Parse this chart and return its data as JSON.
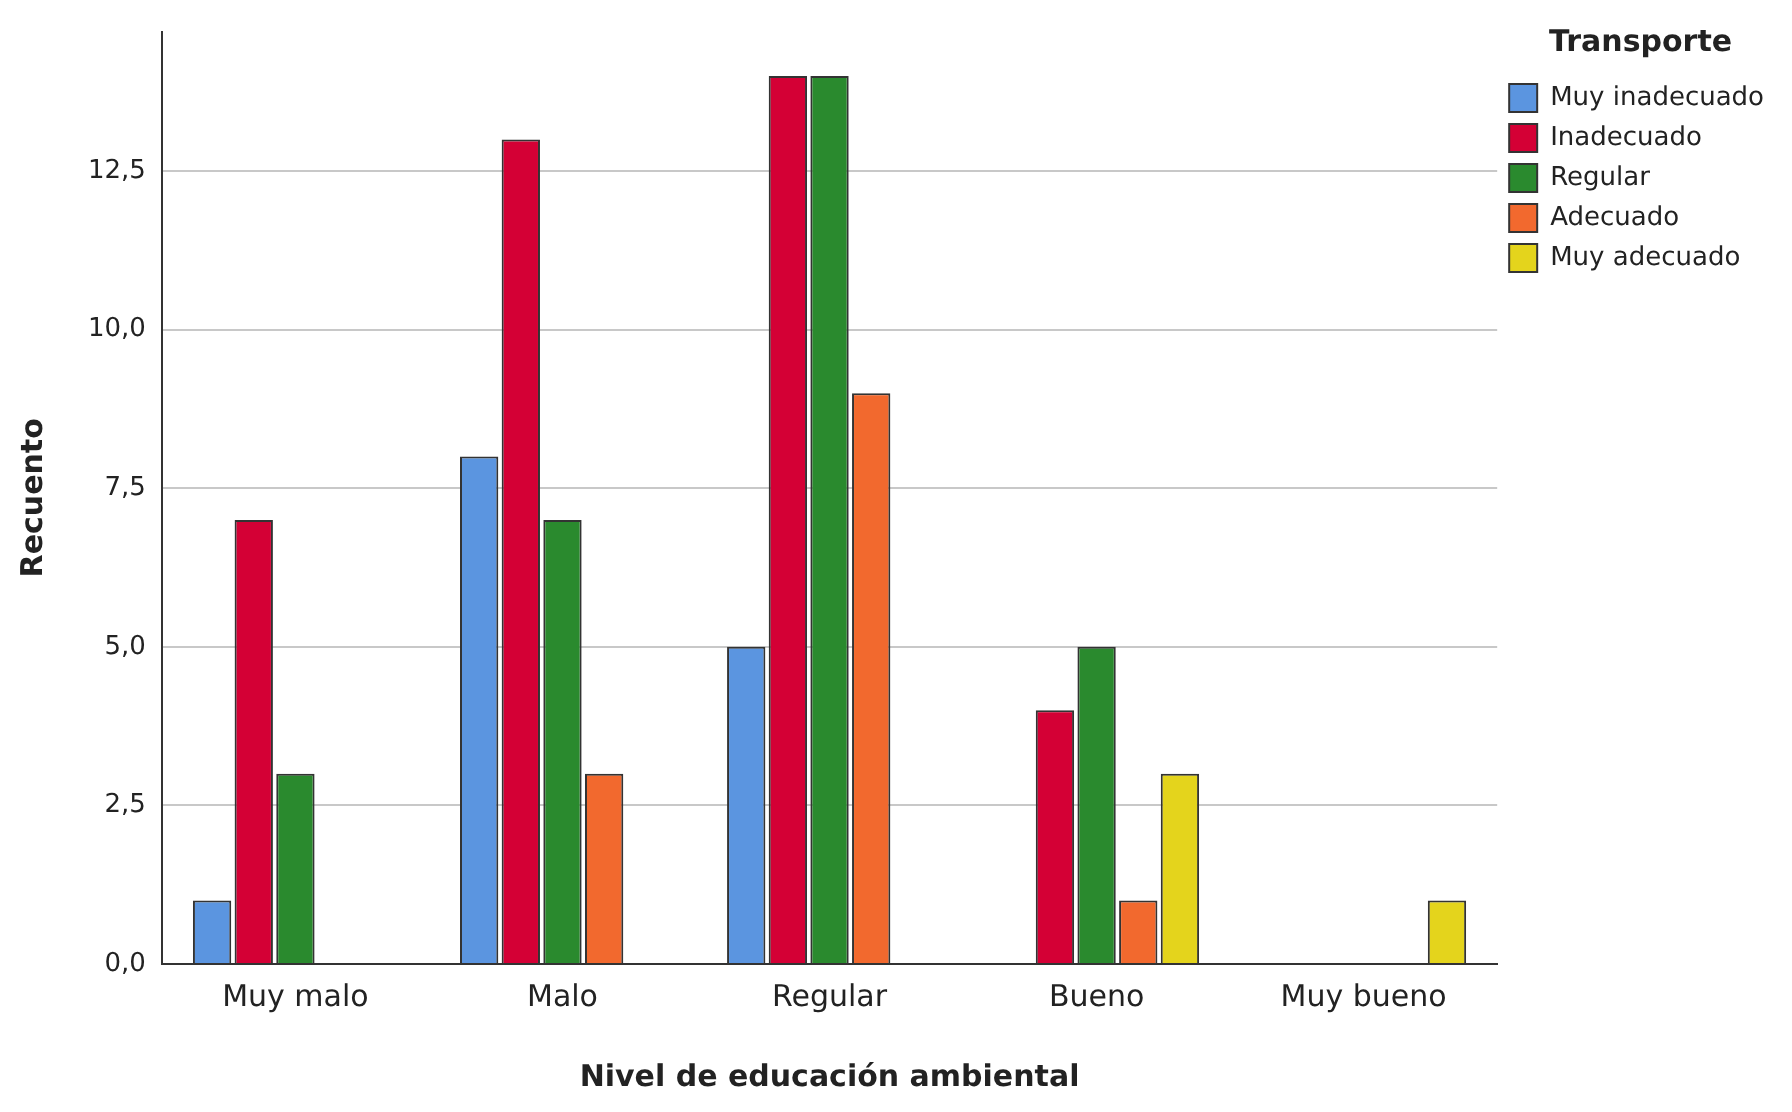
{
  "chart_data": {
    "type": "bar",
    "xlabel": "Nivel de educación ambiental",
    "ylabel": "Recuento",
    "legend_title": "Transporte",
    "categories": [
      "Muy malo",
      "Malo",
      "Regular",
      "Bueno",
      "Muy bueno"
    ],
    "series": [
      {
        "name": "Muy inadecuado",
        "color": "#5b95e0",
        "values": [
          1,
          8,
          5,
          null,
          null
        ]
      },
      {
        "name": "Inadecuado",
        "color": "#d40035",
        "values": [
          7,
          13,
          14,
          4,
          null
        ]
      },
      {
        "name": "Regular",
        "color": "#2a8a2e",
        "values": [
          3,
          7,
          14,
          5,
          null
        ]
      },
      {
        "name": "Adecuado",
        "color": "#f2692e",
        "values": [
          null,
          3,
          9,
          1,
          null
        ]
      },
      {
        "name": "Muy adecuado",
        "color": "#e4d41c",
        "values": [
          null,
          null,
          null,
          3,
          1
        ]
      }
    ],
    "ylim": [
      0,
      14.7
    ],
    "yticks": [
      {
        "value": 0,
        "label": "0,0"
      },
      {
        "value": 2.5,
        "label": "2,5"
      },
      {
        "value": 5,
        "label": "5,0"
      },
      {
        "value": 7.5,
        "label": "7,5"
      },
      {
        "value": 10,
        "label": "10,0"
      },
      {
        "value": 12.5,
        "label": "12,5"
      }
    ],
    "grid": "y",
    "legend": "top right"
  }
}
